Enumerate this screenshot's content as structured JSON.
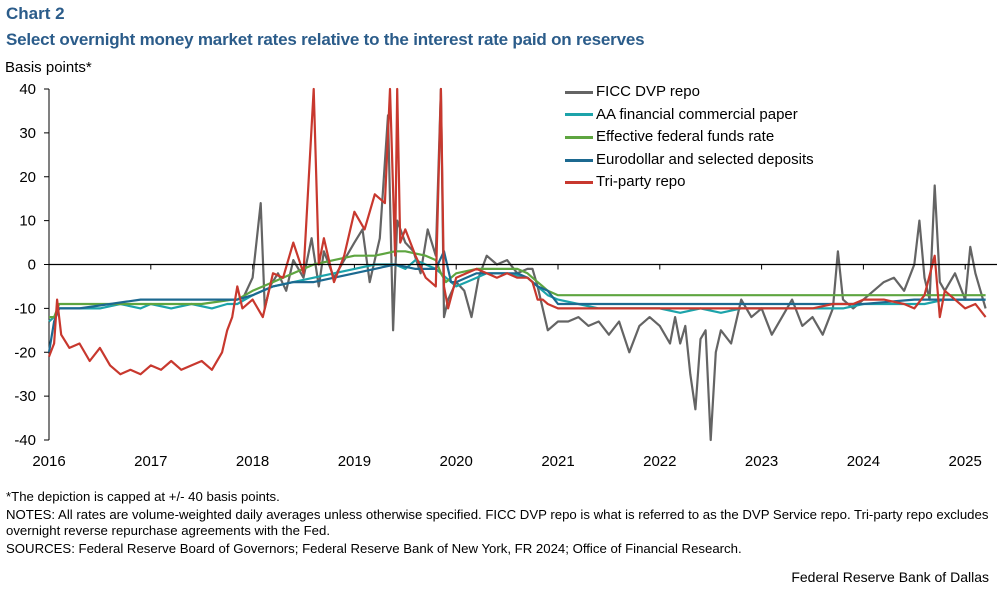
{
  "header": {
    "chart_number": "Chart 2",
    "title": "Select overnight money market rates relative to the interest rate paid on reserves",
    "y_unit_label": "Basis points*"
  },
  "footer": {
    "cap_note": "*The depiction is capped at +/- 40 basis points.",
    "notes": "NOTES: All rates are volume-weighted daily averages unless otherwise specified. FICC DVP repo is what is referred to as the DVP Service repo. Tri-party repo excludes overnight reverse repurchase agreements with the Fed.",
    "sources": "SOURCES: Federal Reserve Board of Governors; Federal Reserve Bank of New York, FR 2024; Office of Financial Research.",
    "credit": "Federal Reserve Bank of Dallas"
  },
  "chart_data": {
    "type": "line",
    "title": "Select overnight money market rates relative to the interest rate paid on reserves",
    "xlabel": "",
    "ylabel": "Basis points*",
    "xlim": [
      2016.0,
      2025.25
    ],
    "ylim": [
      -40,
      40
    ],
    "x_ticks": [
      "2016",
      "2017",
      "2018",
      "2019",
      "2020",
      "2021",
      "2022",
      "2023",
      "2024",
      "2025"
    ],
    "y_ticks": [
      "40",
      "30",
      "20",
      "10",
      "0",
      "-10",
      "-20",
      "-30",
      "-40"
    ],
    "grid": false,
    "legend_position": "top-right",
    "series": [
      {
        "name": "FICC DVP repo",
        "color": "#646464",
        "x": [
          2017.9,
          2018.0,
          2018.08,
          2018.12,
          2018.17,
          2018.25,
          2018.33,
          2018.4,
          2018.5,
          2018.58,
          2018.65,
          2018.7,
          2018.8,
          2018.9,
          2019.0,
          2019.08,
          2019.15,
          2019.25,
          2019.33,
          2019.38,
          2019.42,
          2019.5,
          2019.58,
          2019.65,
          2019.72,
          2019.8,
          2019.85,
          2019.88,
          2019.92,
          2020.0,
          2020.08,
          2020.15,
          2020.22,
          2020.3,
          2020.4,
          2020.5,
          2020.6,
          2020.7,
          2020.75,
          2020.8,
          2020.85,
          2020.9,
          2021.0,
          2021.1,
          2021.2,
          2021.3,
          2021.4,
          2021.5,
          2021.6,
          2021.7,
          2021.8,
          2021.9,
          2022.0,
          2022.1,
          2022.15,
          2022.2,
          2022.25,
          2022.3,
          2022.35,
          2022.4,
          2022.45,
          2022.5,
          2022.55,
          2022.6,
          2022.7,
          2022.8,
          2022.9,
          2023.0,
          2023.1,
          2023.2,
          2023.3,
          2023.4,
          2023.5,
          2023.6,
          2023.7,
          2023.75,
          2023.8,
          2023.9,
          2024.0,
          2024.1,
          2024.2,
          2024.3,
          2024.4,
          2024.5,
          2024.55,
          2024.6,
          2024.65,
          2024.7,
          2024.75,
          2024.8,
          2024.9,
          2025.0,
          2025.05,
          2025.1,
          2025.15,
          2025.2
        ],
        "y": [
          -8,
          -3,
          14,
          -10,
          -5,
          -2,
          -6,
          1,
          -3,
          6,
          -5,
          3,
          -3,
          1,
          5,
          8,
          -4,
          6,
          34,
          -15,
          10,
          5,
          3,
          -2,
          8,
          2,
          40,
          -12,
          -8,
          -4,
          -6,
          -12,
          -3,
          2,
          0,
          1,
          -2,
          -1,
          -1,
          -5,
          -10,
          -15,
          -13,
          -13,
          -12,
          -14,
          -13,
          -16,
          -13,
          -20,
          -14,
          -12,
          -14,
          -18,
          -12,
          -18,
          -14,
          -25,
          -33,
          -17,
          -15,
          -40,
          -20,
          -15,
          -18,
          -8,
          -12,
          -10,
          -16,
          -12,
          -8,
          -14,
          -12,
          -16,
          -10,
          3,
          -8,
          -10,
          -8,
          -6,
          -4,
          -3,
          -6,
          0,
          10,
          -3,
          -8,
          18,
          -4,
          -6,
          -2,
          -8,
          4,
          -2,
          -6,
          -10
        ]
      },
      {
        "name": "AA financial commercial paper",
        "color": "#1ca3aa",
        "x": [
          2016.0,
          2016.05,
          2016.1,
          2016.3,
          2016.5,
          2016.7,
          2016.9,
          2017.0,
          2017.2,
          2017.4,
          2017.6,
          2017.75,
          2017.85,
          2018.0,
          2018.2,
          2018.4,
          2018.6,
          2018.8,
          2019.0,
          2019.2,
          2019.4,
          2019.5,
          2019.6,
          2019.8,
          2019.9,
          2020.0,
          2020.1,
          2020.2,
          2020.3,
          2020.5,
          2020.7,
          2020.8,
          2020.9,
          2021.0,
          2021.2,
          2021.4,
          2021.6,
          2021.8,
          2022.0,
          2022.2,
          2022.4,
          2022.6,
          2022.8,
          2023.0,
          2023.2,
          2023.4,
          2023.6,
          2023.8,
          2024.0,
          2024.2,
          2024.4,
          2024.6,
          2024.8,
          2025.0,
          2025.2
        ],
        "y": [
          -13,
          -12,
          -10,
          -10,
          -10,
          -9,
          -10,
          -9,
          -10,
          -9,
          -10,
          -9,
          -9,
          -7,
          -5,
          -4,
          -3,
          -2,
          -1,
          0,
          0,
          -1,
          1,
          -1,
          -3,
          -5,
          -4,
          -3,
          -2,
          -2,
          -3,
          -5,
          -7,
          -8,
          -9,
          -10,
          -10,
          -10,
          -10,
          -11,
          -10,
          -11,
          -10,
          -10,
          -10,
          -10,
          -10,
          -10,
          -9,
          -9,
          -9,
          -9,
          -8,
          -8,
          -8
        ]
      },
      {
        "name": "Effective federal funds rate",
        "color": "#5ea540",
        "x": [
          2016.0,
          2016.05,
          2016.1,
          2016.5,
          2017.0,
          2017.5,
          2017.8,
          2017.85,
          2018.0,
          2018.2,
          2018.4,
          2018.6,
          2018.8,
          2019.0,
          2019.2,
          2019.4,
          2019.5,
          2019.7,
          2019.8,
          2019.85,
          2019.9,
          2020.0,
          2020.2,
          2020.4,
          2020.6,
          2020.7,
          2020.75,
          2020.8,
          2020.85,
          2020.9,
          2021.0,
          2021.2,
          2021.4,
          2022.0,
          2022.5,
          2023.0,
          2023.5,
          2024.0,
          2024.5,
          2025.0,
          2025.2
        ],
        "y": [
          -12,
          -12,
          -9,
          -9,
          -9,
          -9,
          -8,
          -8,
          -6,
          -4,
          -2,
          0,
          1,
          2,
          2,
          3,
          3,
          2,
          1,
          -2,
          -4,
          -2,
          -1,
          -1,
          -1,
          -2,
          -3,
          -4,
          -5,
          -6,
          -7,
          -7,
          -7,
          -7,
          -7,
          -7,
          -7,
          -7,
          -7,
          -7,
          -7
        ]
      },
      {
        "name": "Eurodollar and selected deposits",
        "color": "#1c6990",
        "x": [
          2016.0,
          2016.05,
          2016.1,
          2016.3,
          2016.6,
          2016.9,
          2017.0,
          2017.3,
          2017.6,
          2017.8,
          2017.85,
          2018.0,
          2018.2,
          2018.4,
          2018.6,
          2018.8,
          2019.0,
          2019.2,
          2019.4,
          2019.6,
          2019.8,
          2019.88,
          2019.95,
          2020.0,
          2020.2,
          2020.4,
          2020.6,
          2020.7,
          2020.8,
          2020.9,
          2021.0,
          2021.2,
          2021.5,
          2022.0,
          2022.5,
          2023.0,
          2023.5,
          2024.0,
          2024.5,
          2025.0,
          2025.2
        ],
        "y": [
          -20,
          -13,
          -10,
          -10,
          -9,
          -8,
          -8,
          -8,
          -8,
          -8,
          -8,
          -7,
          -5,
          -4,
          -4,
          -3,
          -2,
          -1,
          0,
          -1,
          -1,
          3,
          -4,
          -4,
          -2,
          -2,
          -2,
          -3,
          -5,
          -6,
          -9,
          -9,
          -9,
          -9,
          -9,
          -9,
          -9,
          -9,
          -8,
          -8,
          -8
        ]
      },
      {
        "name": "Tri-party repo",
        "color": "#c8382e",
        "x": [
          2016.0,
          2016.05,
          2016.08,
          2016.12,
          2016.2,
          2016.3,
          2016.4,
          2016.5,
          2016.6,
          2016.7,
          2016.8,
          2016.9,
          2017.0,
          2017.1,
          2017.2,
          2017.3,
          2017.4,
          2017.5,
          2017.6,
          2017.7,
          2017.75,
          2017.8,
          2017.85,
          2017.9,
          2018.0,
          2018.1,
          2018.2,
          2018.3,
          2018.4,
          2018.5,
          2018.6,
          2018.65,
          2018.7,
          2018.8,
          2018.9,
          2019.0,
          2019.1,
          2019.2,
          2019.3,
          2019.35,
          2019.4,
          2019.42,
          2019.45,
          2019.5,
          2019.6,
          2019.7,
          2019.8,
          2019.85,
          2019.88,
          2019.92,
          2020.0,
          2020.1,
          2020.2,
          2020.3,
          2020.4,
          2020.5,
          2020.6,
          2020.7,
          2020.75,
          2020.8,
          2020.85,
          2020.9,
          2021.0,
          2021.5,
          2022.0,
          2022.5,
          2023.0,
          2023.3,
          2023.5,
          2023.7,
          2023.9,
          2024.0,
          2024.2,
          2024.4,
          2024.5,
          2024.6,
          2024.7,
          2024.75,
          2024.8,
          2024.9,
          2025.0,
          2025.1,
          2025.2
        ],
        "y": [
          -21,
          -18,
          -8,
          -16,
          -19,
          -18,
          -22,
          -19,
          -23,
          -25,
          -24,
          -25,
          -23,
          -24,
          -22,
          -24,
          -23,
          -22,
          -24,
          -20,
          -15,
          -12,
          -5,
          -10,
          -8,
          -12,
          -2,
          -3,
          5,
          -2,
          40,
          0,
          6,
          -4,
          2,
          12,
          8,
          16,
          14,
          40,
          2,
          40,
          5,
          8,
          2,
          -3,
          -5,
          40,
          -5,
          -10,
          -3,
          -2,
          -1,
          -2,
          -3,
          -2,
          -3,
          -3,
          -4,
          -8,
          -8,
          -9,
          -10,
          -10,
          -10,
          -10,
          -10,
          -10,
          -10,
          -9,
          -9,
          -8,
          -8,
          -9,
          -10,
          -7,
          2,
          -12,
          -6,
          -8,
          -10,
          -9,
          -12
        ]
      }
    ]
  }
}
